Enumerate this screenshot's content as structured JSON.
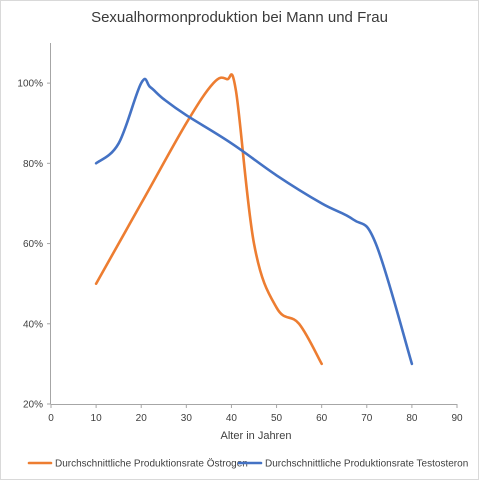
{
  "chart_data": {
    "type": "line",
    "title": "Sexualhormonproduktion  bei Mann und Frau",
    "xlabel": "Alter in Jahren",
    "ylabel": "",
    "xlim": [
      0,
      90
    ],
    "ylim": [
      20,
      110
    ],
    "x_ticks": [
      0,
      10,
      20,
      30,
      40,
      50,
      60,
      70,
      80,
      90
    ],
    "y_ticks": [
      20,
      40,
      60,
      80,
      100
    ],
    "y_tick_format": "percent",
    "grid": false,
    "legend_position": "bottom",
    "series": [
      {
        "name": "Durchschnittliche Produktionsrate Östrogen",
        "color": "#ED7D31",
        "x": [
          10,
          20,
          30,
          36,
          39,
          41,
          45,
          50,
          55,
          60
        ],
        "y": [
          50,
          70,
          90,
          100,
          101,
          98,
          60,
          44,
          40,
          30
        ]
      },
      {
        "name": "Durchschnittliche Produktionsrate Testosteron",
        "color": "#4472C4",
        "x": [
          10,
          15,
          20,
          22,
          25,
          30,
          40,
          50,
          60,
          67,
          72,
          80
        ],
        "y": [
          80,
          85,
          100,
          99,
          96,
          92,
          85,
          77,
          70,
          66,
          60,
          30
        ]
      }
    ]
  }
}
